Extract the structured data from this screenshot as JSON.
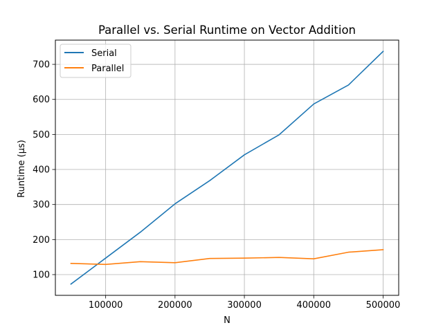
{
  "chart_data": {
    "type": "line",
    "title": "Parallel vs. Serial Runtime on Vector Addition",
    "xlabel": "N",
    "ylabel": "Runtime (μs)",
    "x": [
      50000,
      100000,
      150000,
      200000,
      250000,
      300000,
      350000,
      400000,
      450000,
      500000
    ],
    "series": [
      {
        "name": "Serial",
        "color": "#1f77b4",
        "values": [
          73,
          147,
          221,
          302,
          368,
          442,
          499,
          587,
          641,
          737
        ]
      },
      {
        "name": "Parallel",
        "color": "#ff7f0e",
        "values": [
          132,
          129,
          137,
          134,
          146,
          147,
          149,
          145,
          164,
          171
        ]
      }
    ],
    "xlim": [
      27500,
      522500
    ],
    "ylim": [
      40.8,
      769.2
    ],
    "xticks": [
      100000,
      200000,
      300000,
      400000,
      500000
    ],
    "xtick_labels": [
      "100000",
      "200000",
      "300000",
      "400000",
      "500000"
    ],
    "yticks": [
      100,
      200,
      300,
      400,
      500,
      600,
      700
    ],
    "ytick_labels": [
      "100",
      "200",
      "300",
      "400",
      "500",
      "600",
      "700"
    ],
    "grid": true,
    "legend_position": "top-left"
  }
}
